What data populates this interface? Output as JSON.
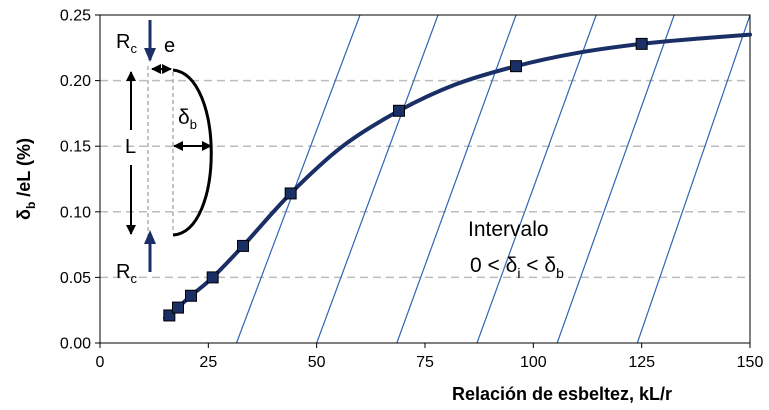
{
  "chart_data": {
    "type": "line",
    "title": "",
    "xlabel": "Relación de esbeltez, kL/r",
    "ylabel": {
      "main": "δ",
      "sub": "b",
      "rest": " /eL (%)"
    },
    "xlim": [
      0,
      150
    ],
    "ylim": [
      0,
      0.25
    ],
    "x_ticks": [
      "0",
      "25",
      "50",
      "75",
      "100",
      "125",
      "150"
    ],
    "y_ticks": [
      "0.00",
      "0.05",
      "0.10",
      "0.15",
      "0.20",
      "0.25"
    ],
    "grid": "horizontal dashed",
    "series": [
      {
        "marker": "square",
        "color": "#1a2f66",
        "points": [
          {
            "x": 16,
            "y": 0.021
          },
          {
            "x": 18,
            "y": 0.027
          },
          {
            "x": 21,
            "y": 0.036
          },
          {
            "x": 26,
            "y": 0.05
          },
          {
            "x": 33,
            "y": 0.074
          },
          {
            "x": 44,
            "y": 0.114
          },
          {
            "x": 69,
            "y": 0.177
          },
          {
            "x": 96,
            "y": 0.211
          },
          {
            "x": 125,
            "y": 0.228
          }
        ],
        "curve": [
          {
            "x": 15,
            "y": 0.019
          },
          {
            "x": 16,
            "y": 0.021
          },
          {
            "x": 18,
            "y": 0.027
          },
          {
            "x": 21,
            "y": 0.036
          },
          {
            "x": 26,
            "y": 0.05
          },
          {
            "x": 33,
            "y": 0.074
          },
          {
            "x": 44,
            "y": 0.114
          },
          {
            "x": 56,
            "y": 0.15
          },
          {
            "x": 69,
            "y": 0.177
          },
          {
            "x": 82,
            "y": 0.197
          },
          {
            "x": 96,
            "y": 0.211
          },
          {
            "x": 110,
            "y": 0.221
          },
          {
            "x": 125,
            "y": 0.228
          },
          {
            "x": 138,
            "y": 0.232
          },
          {
            "x": 150,
            "y": 0.235
          }
        ]
      }
    ],
    "hatch": {
      "color": "#2f66b3",
      "lines": [
        {
          "x1": 31.5,
          "x2": 60
        },
        {
          "x1": 50,
          "x2": 78
        },
        {
          "x1": 68.5,
          "x2": 96
        },
        {
          "x1": 87,
          "x2": 114.5
        },
        {
          "x1": 105.5,
          "x2": 132.5
        },
        {
          "x1": 124,
          "x2": 150
        }
      ]
    },
    "annotations": {
      "region_label": "Intervalo",
      "region_formula": {
        "a": "0 < δ",
        "a_sub": "i",
        "b": " < δ",
        "b_sub": "b"
      },
      "inset": {
        "rc_top": {
          "main": "R",
          "sub": "c"
        },
        "rc_bottom": {
          "main": "R",
          "sub": "c"
        },
        "e_label": "e",
        "l_label": "L",
        "delta_label": {
          "main": "δ",
          "sub": "b"
        }
      }
    }
  }
}
